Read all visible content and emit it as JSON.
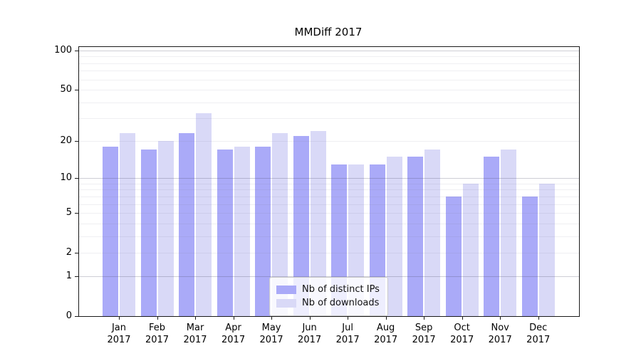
{
  "chart_data": {
    "type": "bar",
    "title": "MMDiff 2017",
    "categories": [
      "Jan",
      "Feb",
      "Mar",
      "Apr",
      "May",
      "Jun",
      "Jul",
      "Aug",
      "Sep",
      "Oct",
      "Nov",
      "Dec"
    ],
    "year_label": "2017",
    "series": [
      {
        "name": "Nb of distinct IPs",
        "color": "#aaaaf8",
        "values": [
          18,
          17,
          23,
          17,
          18,
          22,
          13,
          13,
          15,
          7,
          15,
          7
        ]
      },
      {
        "name": "Nb of downloads",
        "color": "#d9d9f7",
        "values": [
          23,
          20,
          33,
          18,
          23,
          24,
          13,
          15,
          17,
          9,
          17,
          9
        ]
      }
    ],
    "xlabel": "",
    "ylabel": "",
    "ylim": [
      0,
      100
    ],
    "y_scale": "log1p",
    "y_ticks": [
      100,
      50,
      20,
      10,
      5,
      2,
      1,
      0
    ],
    "y_major_gridlines": [
      1,
      10,
      100
    ],
    "y_minor_gridlines": [
      2,
      3,
      4,
      5,
      6,
      7,
      8,
      9,
      20,
      30,
      40,
      50,
      60,
      70,
      80,
      90
    ],
    "grid": "horizontal",
    "legend_position": "lower-center"
  }
}
